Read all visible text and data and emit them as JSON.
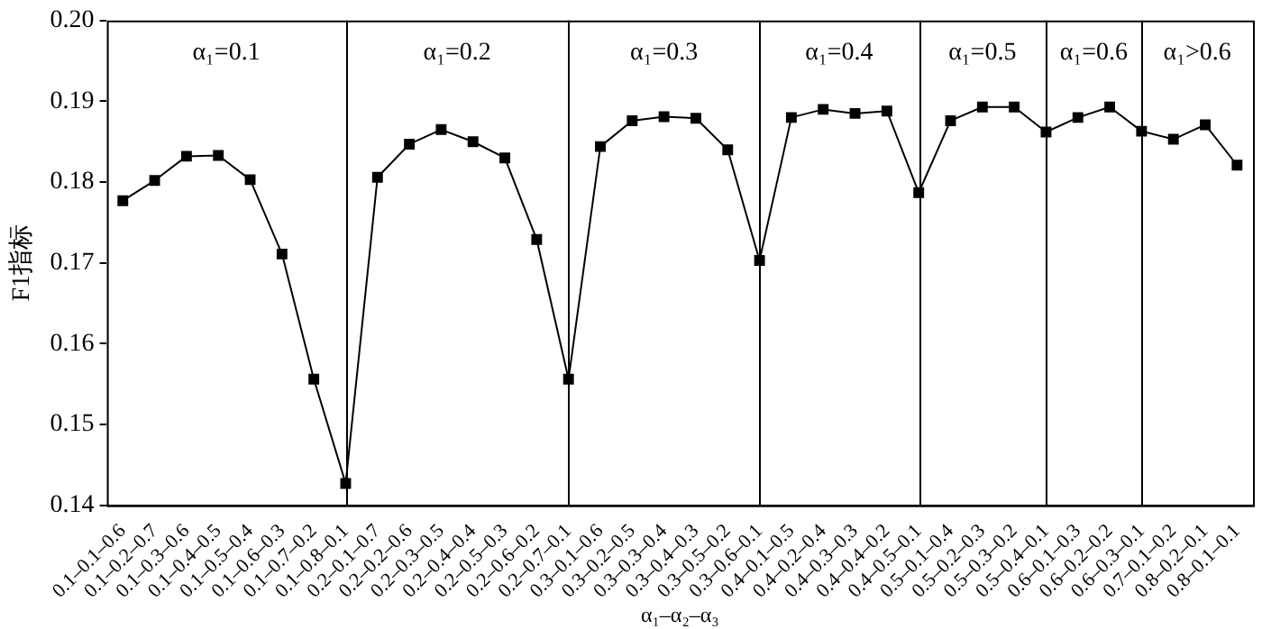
{
  "chart_data": {
    "type": "line",
    "xlabel": "α₁–α₂–α₃",
    "ylabel": "F1指标",
    "categories": [
      "0.1–0.1–0.6",
      "0.1–0.2–0.7",
      "0.1–0.3–0.6",
      "0.1–0.4–0.5",
      "0.1–0.5–0.4",
      "0.1–0.6–0.3",
      "0.1–0.7–0.2",
      "0.1–0.8–0.1",
      "0.2–0.1–0.7",
      "0.2–0.2–0.6",
      "0.2–0.3–0.5",
      "0.2–0.4–0.4",
      "0.2–0.5–0.3",
      "0.2–0.6–0.2",
      "0.2–0.7–0.1",
      "0.3–0.1–0.6",
      "0.3–0.2–0.5",
      "0.3–0.3–0.4",
      "0.3–0.4–0.3",
      "0.3–0.5–0.2",
      "0.3–0.6–0.1",
      "0.4–0.1–0.5",
      "0.4–0.2–0.4",
      "0.4–0.3–0.3",
      "0.4–0.4–0.2",
      "0.4–0.5–0.1",
      "0.5–0.1–0.4",
      "0.5–0.2–0.3",
      "0.5–0.3–0.2",
      "0.5–0.4–0.1",
      "0.6–0.1–0.3",
      "0.6–0.2–0.2",
      "0.6–0.3–0.1",
      "0.7–0.1–0.2",
      "0.8–0.2–0.1",
      "0.8–0.1–0.1"
    ],
    "series": [
      {
        "color": "#000000",
        "values": [
          0.1777,
          0.1802,
          0.1832,
          0.1833,
          0.1803,
          0.1711,
          0.1556,
          0.1427,
          0.1806,
          0.1847,
          0.1865,
          0.185,
          0.183,
          0.1729,
          0.1556,
          0.1844,
          0.1876,
          0.1881,
          0.1879,
          0.184,
          0.1703,
          0.188,
          0.189,
          0.1885,
          0.1888,
          0.1787,
          0.1876,
          0.1893,
          0.1893,
          0.1862,
          0.188,
          0.1893,
          0.1863,
          0.1853,
          0.1871,
          0.1821
        ]
      }
    ],
    "ylim": [
      0.14,
      0.2
    ],
    "yticks": [
      0.14,
      0.15,
      0.16,
      0.17,
      0.18,
      0.19,
      {
        "value": 0.2,
        "label": "0.20"
      }
    ],
    "ref_lines": [
      {
        "axis": "x",
        "value": "0.1–0.8–0.1"
      },
      {
        "axis": "x",
        "value": "0.2–0.7–0.1"
      },
      {
        "axis": "x",
        "value": "0.3–0.6–0.1"
      },
      {
        "axis": "x",
        "value": "0.4–0.5–0.1"
      },
      {
        "axis": "x",
        "value": "0.5–0.4–0.1"
      },
      {
        "axis": "x",
        "value": "0.6–0.3–0.1"
      }
    ],
    "annotations": [
      "α₁=0.1",
      "α₁=0.2",
      "α₁=0.3",
      "α₁=0.4",
      "α₁=0.5",
      "α₁=0.6",
      "α₁>0.6"
    ],
    "grid": false,
    "legend": false,
    "marker": "square",
    "line_style": "solid"
  }
}
